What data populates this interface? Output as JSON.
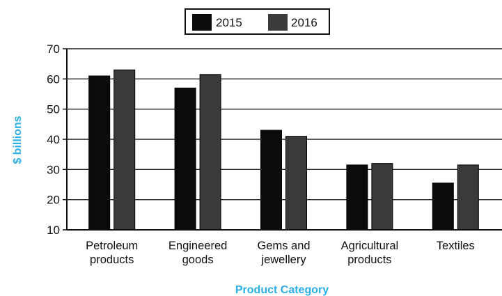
{
  "chart_data": {
    "type": "bar",
    "title": "",
    "xlabel": "Product Category",
    "ylabel": "$ billions",
    "ylim": [
      10,
      70
    ],
    "yticks": [
      10,
      20,
      30,
      40,
      50,
      60,
      70
    ],
    "grid": true,
    "legend_position": "top-center",
    "categories": [
      [
        "Petroleum",
        "products"
      ],
      [
        "Engineered",
        "goods"
      ],
      [
        "Gems and",
        "jewellery"
      ],
      [
        "Agricultural",
        "products"
      ],
      [
        "Textiles"
      ]
    ],
    "series": [
      {
        "name": "2015",
        "values": [
          61,
          57,
          43,
          31.5,
          25.5
        ],
        "color": "#0b0b0b"
      },
      {
        "name": "2016",
        "values": [
          63,
          61.5,
          41,
          32,
          31.5
        ],
        "color": "#3a3a3a"
      }
    ],
    "axis_title_color": "#29aee6"
  }
}
